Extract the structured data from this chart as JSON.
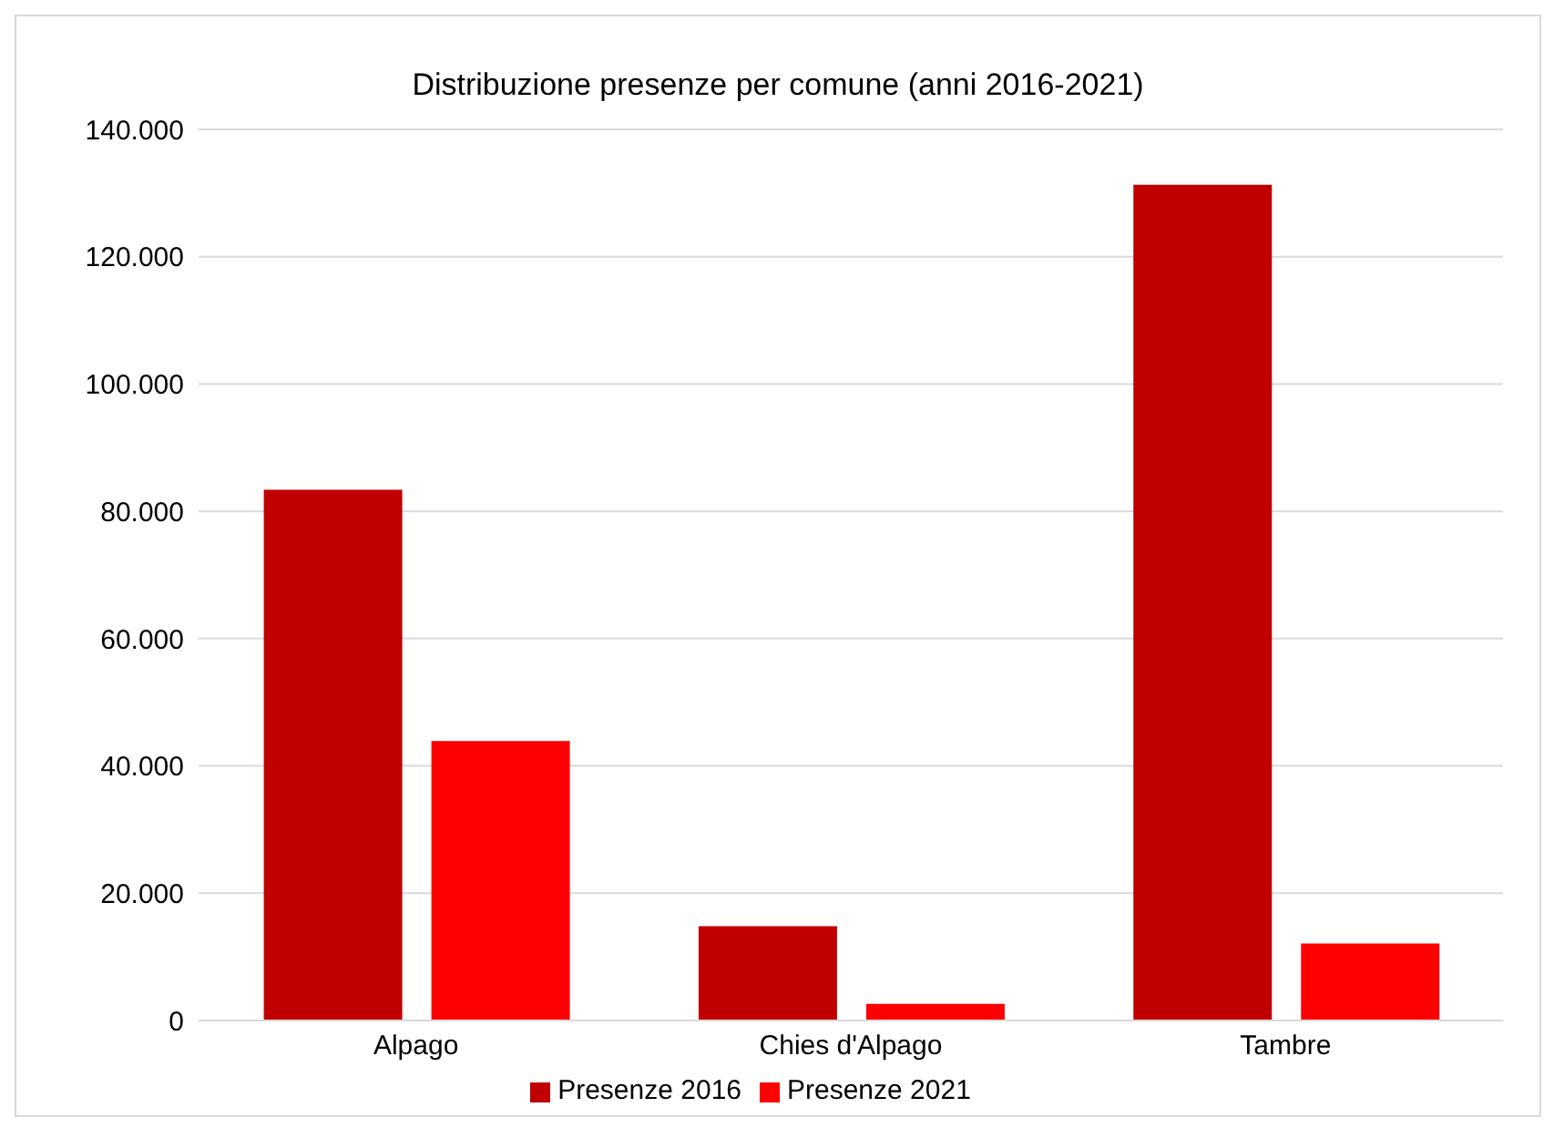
{
  "chart_data": {
    "type": "bar",
    "title": "Distribuzione presenze per comune (anni 2016-2021)",
    "categories": [
      "Alpago",
      "Chies d'Alpago",
      "Tambre"
    ],
    "series": [
      {
        "name": "Presenze 2016",
        "color": "#c00000",
        "values": [
          83400,
          14800,
          131300
        ]
      },
      {
        "name": "Presenze 2021",
        "color": "#ff0000",
        "values": [
          43900,
          2600,
          12100
        ]
      }
    ],
    "ylim": [
      0,
      140000
    ],
    "yticks": [
      {
        "value": 0,
        "label": "0"
      },
      {
        "value": 20000,
        "label": "20.000"
      },
      {
        "value": 40000,
        "label": "40.000"
      },
      {
        "value": 60000,
        "label": "60.000"
      },
      {
        "value": 80000,
        "label": "80.000"
      },
      {
        "value": 100000,
        "label": "100.000"
      },
      {
        "value": 120000,
        "label": "120.000"
      },
      {
        "value": 140000,
        "label": "140.000"
      }
    ],
    "grid": "y",
    "legend": "bottom"
  }
}
